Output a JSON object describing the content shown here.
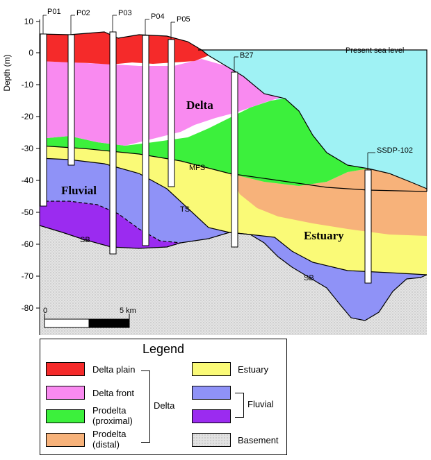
{
  "axis": {
    "ylabel": "Depth (m)",
    "ticks": [
      10,
      0,
      -10,
      -20,
      -30,
      -40,
      -50,
      -60,
      -70,
      -80
    ]
  },
  "boreholes": [
    "P01",
    "P02",
    "P03",
    "P04",
    "P05",
    "B27",
    "SSDP-102"
  ],
  "annotations": {
    "sea_level": "Present sea level",
    "mfs": "MFS",
    "ts": "TS",
    "sb_left": "SB",
    "sb_right": "SB"
  },
  "unit_labels": {
    "delta": "Delta",
    "fluvial": "Fluvial",
    "estuary": "Estuary"
  },
  "scale_bar": {
    "start": "0",
    "end": "5 km"
  },
  "legend": {
    "title": "Legend",
    "items": {
      "delta_plain": "Delta plain",
      "delta_front": "Delta front",
      "prodelta_proximal": "Prodelta\n(proximal)",
      "prodelta_distal": "Prodelta\n(distal)",
      "estuary": "Estuary",
      "basement": "Basement"
    },
    "groups": {
      "delta": "Delta",
      "fluvial": "Fluvial"
    }
  },
  "colors": {
    "delta_plain": "#f52a2a",
    "delta_front": "#f98af0",
    "prodelta_proximal": "#3cf03c",
    "prodelta_distal": "#f7b27a",
    "estuary": "#fafa77",
    "fluvial_upper": "#8f92f7",
    "fluvial_lower": "#9b2bf0",
    "sea": "#9ff2f4",
    "basement": "#dedede"
  }
}
